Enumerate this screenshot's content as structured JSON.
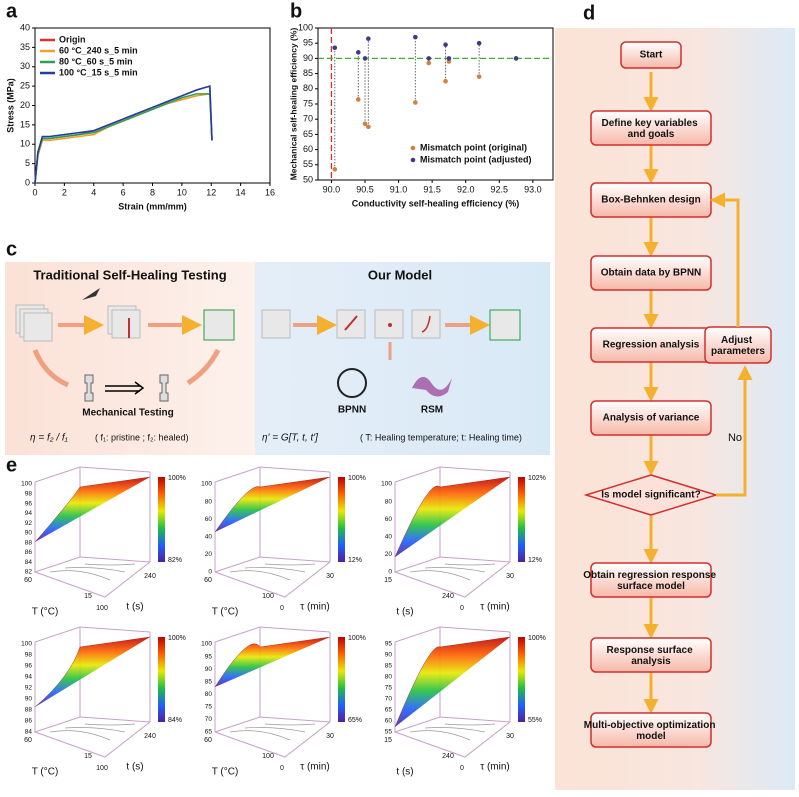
{
  "panel_labels": [
    "a",
    "b",
    "c",
    "d",
    "e"
  ],
  "chart_data": [
    {
      "type": "line",
      "xlabel": "Strain (mm/mm)",
      "ylabel": "Stress (MPa)",
      "x": [
        0,
        0.2,
        0.5,
        1,
        2,
        3,
        4,
        5,
        6,
        7,
        8,
        9,
        10,
        11,
        11.9,
        12.05
      ],
      "series": [
        {
          "name": "Origin",
          "color": "#e03030",
          "values": [
            0,
            8,
            11.5,
            11.5,
            12,
            12.5,
            13.5,
            15,
            16.5,
            18,
            19.5,
            21,
            22.5,
            24,
            25,
            11
          ]
        },
        {
          "name": "60 °C_240 s_5 min",
          "color": "#f0a030",
          "values": [
            0,
            7,
            11,
            11,
            11.5,
            12,
            12.5,
            14.5,
            16,
            17.5,
            19,
            20.5,
            21.5,
            22.5,
            23,
            11
          ]
        },
        {
          "name": "80 °C_60 s_5 min",
          "color": "#30a050",
          "values": [
            0,
            7.5,
            11.5,
            11.5,
            12,
            12.5,
            13,
            14.5,
            16,
            17.5,
            19,
            20.5,
            22,
            23,
            23,
            11
          ]
        },
        {
          "name": "100 °C_15 s_5 min",
          "color": "#2040a0",
          "values": [
            0,
            8,
            12,
            12,
            12.5,
            13,
            13.5,
            15,
            16.5,
            18,
            19.5,
            21,
            22.5,
            24,
            25,
            11
          ]
        }
      ],
      "xlim": [
        0,
        16
      ],
      "xticks": [
        0,
        2,
        4,
        6,
        8,
        10,
        12,
        14,
        16
      ],
      "ylim": [
        0,
        40
      ],
      "yticks": [
        0,
        5,
        10,
        15,
        20,
        25,
        30,
        35,
        40
      ],
      "legend": "upper left"
    },
    {
      "type": "scatter",
      "xlabel": "Conductivity self-healing efficiency (%)",
      "ylabel": "Mechanical self-healing efficiency (%)",
      "series": [
        {
          "name": "Mismatch point (original)",
          "color": "#d08040",
          "x": [
            90.05,
            90.4,
            90.5,
            90.55,
            91.25,
            91.45,
            91.7,
            91.75,
            92.2,
            92.75
          ],
          "values": [
            53.5,
            76.5,
            68.5,
            67.5,
            75.5,
            88.5,
            82.5,
            89,
            84,
            90
          ]
        },
        {
          "name": "Mismatch point (adjusted)",
          "color": "#403a8a",
          "x": [
            90.05,
            90.4,
            90.5,
            90.55,
            91.25,
            91.45,
            91.7,
            91.75,
            92.2,
            92.75
          ],
          "values": [
            93.5,
            92,
            90,
            96.5,
            97,
            90,
            94.5,
            90,
            95,
            90
          ]
        }
      ],
      "vline": 90,
      "hline": 90,
      "xlim": [
        89.8,
        93.3
      ],
      "xticks": [
        {
          "value": 90,
          "label": "90.0"
        },
        90.5,
        {
          "value": 91,
          "label": "91.0"
        },
        91.5,
        {
          "value": 92,
          "label": "92.0"
        },
        92.5,
        {
          "value": 93,
          "label": "93.0"
        }
      ],
      "ylim": [
        50,
        100
      ],
      "yticks": [
        50,
        55,
        60,
        65,
        70,
        75,
        80,
        85,
        90,
        95,
        100
      ],
      "legend": "lower right"
    }
  ],
  "diagram_c": {
    "left_title": "Traditional Self-Healing Testing",
    "right_title": "Our Model",
    "mechanical": "Mechanical Testing",
    "bpnn": "BPNN",
    "rsm": "RSM",
    "formula_left": "η = f₂ / f₁",
    "note_left": "( f₁: pristine ; f₂: healed)",
    "formula_right": "η' = G[T, t, t']",
    "note_right": "( T: Healing temperature; t: Healing time)"
  },
  "flowchart": {
    "nodes": [
      "Start",
      "Define key variables and goals",
      "Box-Behnken design",
      "Obtain data by BPNN",
      "Regression analysis",
      "Analysis of variance",
      "Is model significant?",
      "Obtain regression response surface model",
      "Response surface analysis",
      "Multi-objective optimization model"
    ],
    "side": "Adjust parameters",
    "no": "No"
  },
  "surfaces": [
    {
      "cbar": [
        "100%",
        "82%"
      ],
      "z": [
        "100",
        "98",
        "96",
        "94",
        "92",
        "90",
        "88",
        "86",
        "84",
        "82"
      ],
      "axes": [
        "T (°C)",
        "t (s)"
      ],
      "ticks": [
        "60",
        "15",
        "100",
        "240"
      ]
    },
    {
      "cbar": [
        "100%",
        "12%"
      ],
      "z": [
        "100",
        "80",
        "60",
        "40",
        "20",
        "0"
      ],
      "axes": [
        "T (°C)",
        "τ (min)"
      ],
      "ticks": [
        "60",
        "100",
        "0",
        "30"
      ]
    },
    {
      "cbar": [
        "102%",
        "12%"
      ],
      "z": [
        "100",
        "80",
        "60",
        "40",
        "20",
        "0"
      ],
      "axes": [
        "t (s)",
        "τ (min)"
      ],
      "ticks": [
        "15",
        "240",
        "0",
        "30"
      ]
    },
    {
      "cbar": [
        "100%",
        "84%"
      ],
      "z": [
        "100",
        "98",
        "96",
        "94",
        "92",
        "90",
        "88",
        "86",
        "84"
      ],
      "axes": [
        "T (°C)",
        "t (s)"
      ],
      "ticks": [
        "60",
        "15",
        "100",
        "240"
      ]
    },
    {
      "cbar": [
        "100%",
        "65%"
      ],
      "z": [
        "100",
        "95",
        "90",
        "85",
        "80",
        "75",
        "70",
        "65"
      ],
      "axes": [
        "T (°C)",
        "τ (min)"
      ],
      "ticks": [
        "60",
        "100",
        "0",
        "30"
      ]
    },
    {
      "cbar": [
        "100%",
        "55%"
      ],
      "z": [
        "95",
        "90",
        "85",
        "80",
        "75",
        "70",
        "65",
        "60",
        "55"
      ],
      "axes": [
        "t (s)",
        "τ (min)"
      ],
      "ticks": [
        "15",
        "240",
        "0",
        "30"
      ]
    }
  ]
}
